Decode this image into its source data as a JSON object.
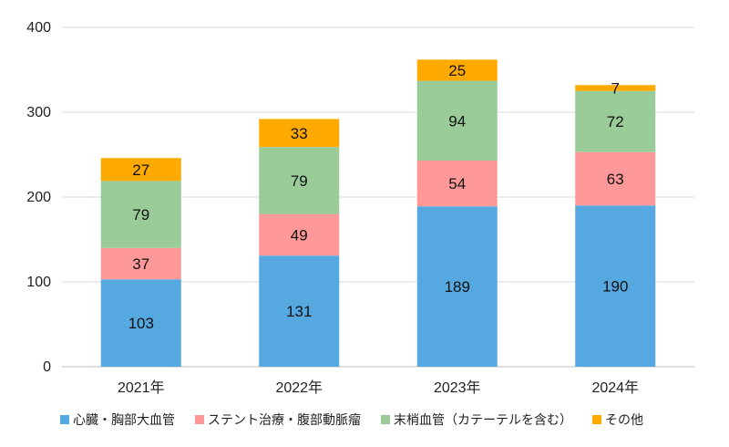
{
  "chart_data": {
    "type": "bar",
    "stacked": true,
    "categories": [
      "2021年",
      "2022年",
      "2023年",
      "2024年"
    ],
    "series": [
      {
        "name": "心臓・胸部大血管",
        "values": [
          103,
          131,
          189,
          190
        ],
        "color": "#55A8E0"
      },
      {
        "name": "ステント治療・腹部動脈瘤",
        "values": [
          37,
          49,
          54,
          63
        ],
        "color": "#FF9999"
      },
      {
        "name": "末梢血管（カテーテルを含む）",
        "values": [
          79,
          79,
          94,
          72
        ],
        "color": "#99CC99"
      },
      {
        "name": "その他",
        "values": [
          27,
          33,
          25,
          7
        ],
        "color": "#FFAA00"
      }
    ],
    "ylim": [
      0,
      400
    ],
    "yticks": [
      0,
      100,
      200,
      300,
      400
    ],
    "grid": true,
    "legend_position": "bottom",
    "title": "",
    "xlabel": "",
    "ylabel": ""
  }
}
